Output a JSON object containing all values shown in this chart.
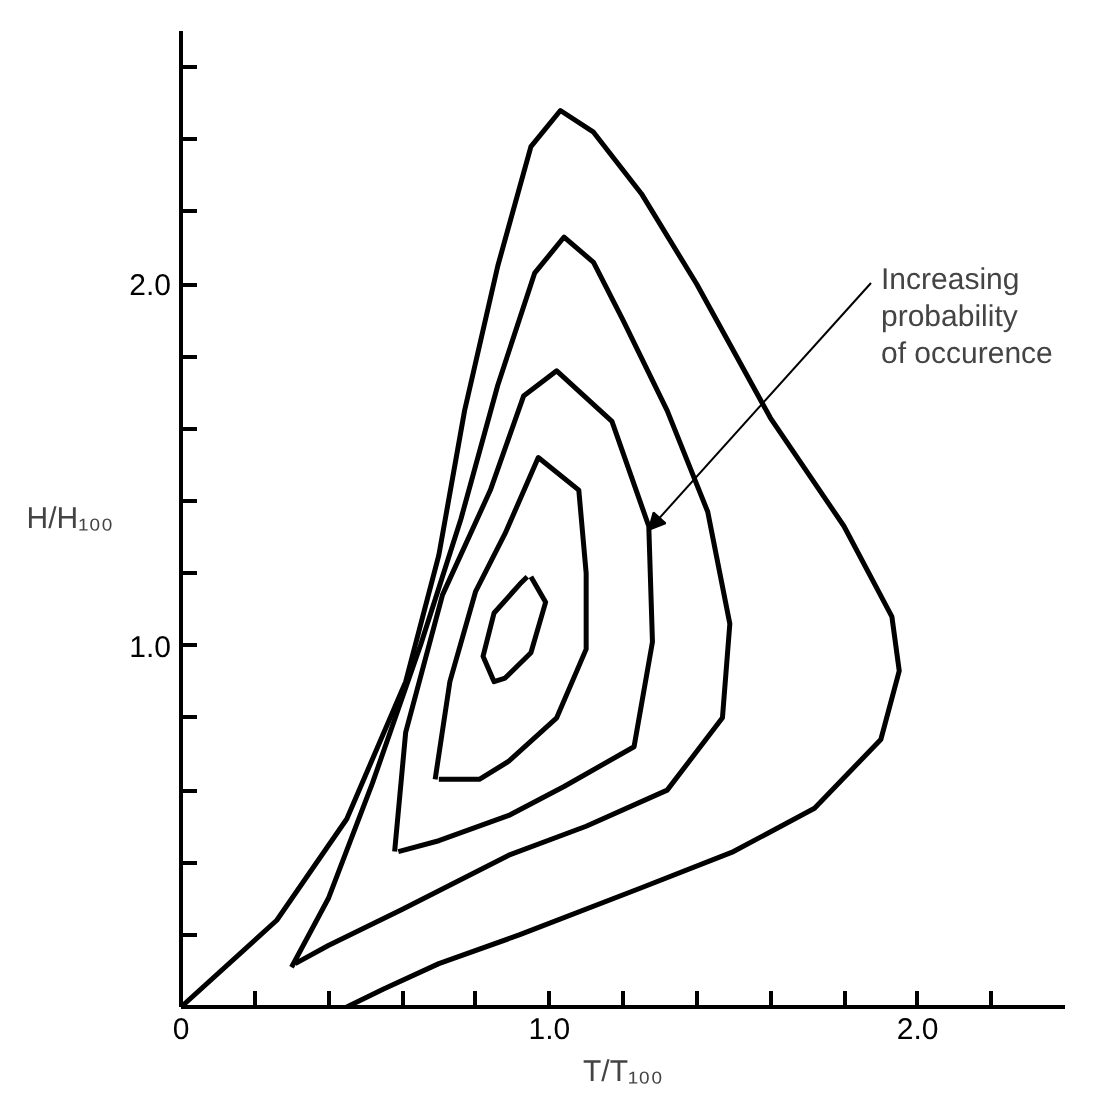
{
  "chart_data": {
    "type": "line",
    "xlabel": "T/T₁₀₀",
    "ylabel": "H/H₁₀₀",
    "xlim": [
      0,
      2.4
    ],
    "ylim": [
      0,
      2.7
    ],
    "xticks": [
      {
        "value": 0,
        "label": "0"
      },
      {
        "value": 0.2,
        "label": null
      },
      {
        "value": 0.4,
        "label": null
      },
      {
        "value": 0.6,
        "label": null
      },
      {
        "value": 0.8,
        "label": null
      },
      {
        "value": 1.0,
        "label": "1.0"
      },
      {
        "value": 1.2,
        "label": null
      },
      {
        "value": 1.4,
        "label": null
      },
      {
        "value": 1.6,
        "label": null
      },
      {
        "value": 1.8,
        "label": null
      },
      {
        "value": 2.0,
        "label": "2.0"
      },
      {
        "value": 2.2,
        "label": null
      }
    ],
    "yticks": [
      {
        "value": 0.2,
        "label": null
      },
      {
        "value": 0.4,
        "label": null
      },
      {
        "value": 0.6,
        "label": null
      },
      {
        "value": 0.8,
        "label": null
      },
      {
        "value": 1.0,
        "label": "1.0"
      },
      {
        "value": 1.2,
        "label": null
      },
      {
        "value": 1.4,
        "label": null
      },
      {
        "value": 1.6,
        "label": null
      },
      {
        "value": 1.8,
        "label": null
      },
      {
        "value": 2.0,
        "label": "2.0"
      },
      {
        "value": 2.2,
        "label": null
      },
      {
        "value": 2.4,
        "label": null
      },
      {
        "value": 2.6,
        "label": null
      }
    ],
    "grid": false,
    "line_style": "solid",
    "annotations": [
      {
        "text": "Increasing\nprobability\nof occurence",
        "x": 1.27,
        "y": 1.32
      }
    ],
    "series": [
      {
        "color": "#000000",
        "x": [
          0,
          0.26,
          0.45,
          0.61,
          0.7,
          0.77,
          0.86,
          0.95,
          1.03,
          1.12,
          1.25,
          1.4,
          1.6,
          1.8,
          1.93,
          1.95,
          1.9,
          1.72,
          1.5,
          1.25,
          0.92,
          0.7,
          0.55,
          0.45
        ],
        "values": [
          0,
          0.24,
          0.52,
          0.9,
          1.25,
          1.65,
          2.05,
          2.38,
          2.48,
          2.42,
          2.25,
          2.0,
          1.63,
          1.33,
          1.08,
          0.93,
          0.74,
          0.55,
          0.43,
          0.33,
          0.2,
          0.12,
          0.05,
          0
        ]
      },
      {
        "color": "#010101",
        "x": [
          0.3,
          0.4,
          0.52,
          0.65,
          0.76,
          0.86,
          0.96,
          1.04,
          1.12,
          1.2,
          1.32,
          1.43,
          1.49,
          1.47,
          1.32,
          1.1,
          0.89,
          0.6,
          0.4,
          0.31
        ],
        "values": [
          0.11,
          0.3,
          0.62,
          1.0,
          1.35,
          1.72,
          2.03,
          2.13,
          2.06,
          1.9,
          1.65,
          1.37,
          1.06,
          0.8,
          0.6,
          0.5,
          0.42,
          0.27,
          0.17,
          0.12
        ]
      },
      {
        "color": "#020202",
        "x": [
          0.58,
          0.61,
          0.71,
          0.84,
          0.93,
          1.02,
          1.17,
          1.27,
          1.28,
          1.23,
          1.04,
          0.89,
          0.7,
          0.59
        ],
        "values": [
          0.43,
          0.76,
          1.14,
          1.43,
          1.69,
          1.76,
          1.62,
          1.33,
          1.01,
          0.72,
          0.61,
          0.53,
          0.46,
          0.43
        ]
      },
      {
        "color": "#030303",
        "x": [
          0.69,
          0.73,
          0.8,
          0.88,
          0.97,
          1.08,
          1.1,
          1.1,
          1.02,
          0.89,
          0.81,
          0.7
        ],
        "values": [
          0.63,
          0.9,
          1.15,
          1.31,
          1.52,
          1.43,
          1.2,
          0.99,
          0.8,
          0.68,
          0.63,
          0.63
        ]
      },
      {
        "color": "#040404",
        "x": [
          0.95,
          0.99,
          0.95,
          0.88,
          0.85,
          0.82,
          0.85,
          0.92,
          0.94
        ],
        "values": [
          1.19,
          1.12,
          0.98,
          0.91,
          0.9,
          0.97,
          1.09,
          1.17,
          1.19
        ]
      }
    ]
  }
}
